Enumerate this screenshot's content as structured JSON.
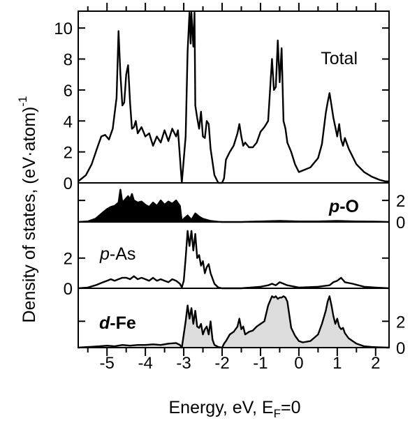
{
  "chart_data": {
    "type": "line",
    "xlabel": "Energy, eV, E",
    "xlabel_sub": "F",
    "xlabel_tail": "=0",
    "ylabel": "Density of states, (eV·atom)",
    "ylabel_sup": "-1",
    "xlim": [
      -5.75,
      2.35
    ],
    "x_ticks": [
      "-5",
      "-4",
      "-3",
      "-2",
      "-1",
      "0",
      "1",
      "2"
    ],
    "x_tick_values": [
      -5,
      -4,
      -3,
      -2,
      -1,
      0,
      1,
      2
    ],
    "panels": [
      {
        "id": "total",
        "label": "Total",
        "label_parts": [
          "Total"
        ],
        "ylim": [
          0,
          11
        ],
        "y_ticks": [
          "0",
          "2",
          "4",
          "6",
          "8",
          "10"
        ],
        "y_tick_values": [
          0,
          2,
          4,
          6,
          8,
          10
        ],
        "tick_side": "left",
        "fill": "none",
        "x": [
          -5.75,
          -5.55,
          -5.4,
          -5.25,
          -5.15,
          -5.05,
          -4.95,
          -4.85,
          -4.75,
          -4.7,
          -4.65,
          -4.6,
          -4.55,
          -4.5,
          -4.45,
          -4.4,
          -4.35,
          -4.3,
          -4.25,
          -4.2,
          -4.1,
          -4.0,
          -3.9,
          -3.8,
          -3.7,
          -3.6,
          -3.5,
          -3.4,
          -3.3,
          -3.2,
          -3.15,
          -3.05,
          -2.95,
          -2.9,
          -2.85,
          -2.82,
          -2.8,
          -2.75,
          -2.72,
          -2.7,
          -2.65,
          -2.6,
          -2.55,
          -2.5,
          -2.45,
          -2.4,
          -2.35,
          -2.3,
          -2.2,
          -2.1,
          -2.0,
          -1.95,
          -1.9,
          -1.8,
          -1.7,
          -1.6,
          -1.55,
          -1.5,
          -1.45,
          -1.4,
          -1.3,
          -1.2,
          -1.1,
          -1.0,
          -0.9,
          -0.8,
          -0.7,
          -0.65,
          -0.6,
          -0.55,
          -0.5,
          -0.45,
          -0.4,
          -0.35,
          -0.3,
          -0.2,
          -0.1,
          0.0,
          0.1,
          0.3,
          0.5,
          0.6,
          0.7,
          0.75,
          0.8,
          0.85,
          0.9,
          0.95,
          1.0,
          1.05,
          1.1,
          1.15,
          1.2,
          1.3,
          1.5,
          1.7,
          1.9,
          2.1,
          2.25,
          2.35
        ],
        "y": [
          0.1,
          0.5,
          1.2,
          2.3,
          3.0,
          3.1,
          2.8,
          3.5,
          5.5,
          9.8,
          7.0,
          5.0,
          5.2,
          7.0,
          7.6,
          5.2,
          3.5,
          3.6,
          4.0,
          3.2,
          3.6,
          3.0,
          3.2,
          2.4,
          3.0,
          2.6,
          3.4,
          2.7,
          3.5,
          3.0,
          3.4,
          0.0,
          3.0,
          8.5,
          11.0,
          9.0,
          11.0,
          8.8,
          11.0,
          5.0,
          4.2,
          3.5,
          4.6,
          3.0,
          2.9,
          4.0,
          3.8,
          2.2,
          0.5,
          0.0,
          0.0,
          0.3,
          1.5,
          2.0,
          2.4,
          3.2,
          3.8,
          3.0,
          2.4,
          2.6,
          2.3,
          2.3,
          2.6,
          3.3,
          3.6,
          4.0,
          8.0,
          6.0,
          6.2,
          9.2,
          6.5,
          8.7,
          4.0,
          3.5,
          2.6,
          2.0,
          1.2,
          0.7,
          0.8,
          1.0,
          1.6,
          2.5,
          4.5,
          5.2,
          5.8,
          5.0,
          4.2,
          3.6,
          3.0,
          3.8,
          2.8,
          2.4,
          2.9,
          2.2,
          1.2,
          0.7,
          0.4,
          0.2,
          0.1,
          0.1
        ]
      },
      {
        "id": "p-O",
        "label": "p-O",
        "label_parts": [
          "p",
          "-O"
        ],
        "label_style": "bold",
        "ylim": [
          0,
          3.5
        ],
        "y_ticks": [
          "0",
          "2"
        ],
        "y_tick_values": [
          0,
          2
        ],
        "tick_side": "right",
        "fill": "#000000",
        "x": [
          -5.75,
          -5.5,
          -5.3,
          -5.1,
          -5.0,
          -4.9,
          -4.8,
          -4.7,
          -4.65,
          -4.6,
          -4.55,
          -4.5,
          -4.45,
          -4.4,
          -4.35,
          -4.3,
          -4.2,
          -4.1,
          -4.0,
          -3.9,
          -3.8,
          -3.7,
          -3.6,
          -3.5,
          -3.4,
          -3.3,
          -3.2,
          -3.1,
          -3.05,
          -3.0,
          -2.9,
          -2.8,
          -2.7,
          -2.6,
          -2.5,
          -2.3,
          -2.1,
          -2.0,
          -1.5,
          -1.0,
          -0.5,
          0.0,
          0.5,
          1.0,
          1.5,
          2.0,
          2.35
        ],
        "y": [
          0.0,
          0.05,
          0.3,
          0.9,
          1.2,
          1.4,
          1.5,
          1.8,
          3.0,
          1.8,
          2.0,
          2.2,
          2.4,
          2.1,
          2.6,
          2.0,
          1.8,
          1.9,
          1.6,
          1.4,
          1.8,
          1.5,
          2.0,
          1.6,
          1.9,
          1.7,
          2.0,
          1.5,
          0.05,
          0.3,
          0.6,
          0.2,
          0.8,
          0.5,
          0.3,
          0.1,
          0.02,
          0.0,
          0.0,
          0.05,
          0.1,
          0.05,
          0.05,
          0.1,
          0.05,
          0.03,
          0.0
        ]
      },
      {
        "id": "p-As",
        "label": "p-As",
        "label_parts": [
          "p",
          "-As"
        ],
        "label_style": "normal",
        "ylim": [
          0,
          4.3
        ],
        "y_ticks": [
          "0",
          "2"
        ],
        "y_tick_values": [
          0,
          2
        ],
        "tick_side": "left",
        "fill": "none",
        "x": [
          -5.75,
          -5.5,
          -5.3,
          -5.1,
          -5.0,
          -4.9,
          -4.8,
          -4.7,
          -4.6,
          -4.5,
          -4.4,
          -4.3,
          -4.2,
          -4.1,
          -4.0,
          -3.9,
          -3.8,
          -3.7,
          -3.6,
          -3.5,
          -3.4,
          -3.3,
          -3.2,
          -3.1,
          -3.05,
          -3.0,
          -2.95,
          -2.9,
          -2.85,
          -2.8,
          -2.75,
          -2.7,
          -2.65,
          -2.6,
          -2.55,
          -2.5,
          -2.45,
          -2.4,
          -2.35,
          -2.3,
          -2.2,
          -2.1,
          -2.0,
          -1.5,
          -1.0,
          -0.8,
          -0.7,
          -0.6,
          -0.5,
          -0.4,
          -0.3,
          0.0,
          0.5,
          0.8,
          0.9,
          1.0,
          1.1,
          1.2,
          1.4,
          1.7,
          2.0,
          2.35
        ],
        "y": [
          0.0,
          0.05,
          0.2,
          0.4,
          0.5,
          0.6,
          0.5,
          0.6,
          0.7,
          0.7,
          0.6,
          0.8,
          0.6,
          0.7,
          0.6,
          0.5,
          0.7,
          0.5,
          0.6,
          0.5,
          0.4,
          0.6,
          0.5,
          0.3,
          0.05,
          0.5,
          2.0,
          3.8,
          2.8,
          3.8,
          2.5,
          3.6,
          2.0,
          2.2,
          1.5,
          1.8,
          1.0,
          1.4,
          1.6,
          1.0,
          0.3,
          0.05,
          0.0,
          0.0,
          0.1,
          0.2,
          0.3,
          0.2,
          0.4,
          0.3,
          0.2,
          0.05,
          0.1,
          0.2,
          0.4,
          0.5,
          0.7,
          0.4,
          0.3,
          0.1,
          0.05,
          0.0
        ]
      },
      {
        "id": "d-Fe",
        "label": "d-Fe",
        "label_parts": [
          "d",
          "-Fe"
        ],
        "label_style": "bold",
        "ylim": [
          0,
          4.4
        ],
        "y_ticks": [
          "0",
          "2"
        ],
        "y_tick_values": [
          0,
          2
        ],
        "tick_side": "right",
        "fill": "#dcdcdc",
        "x": [
          -5.75,
          -5.5,
          -5.2,
          -5.0,
          -4.8,
          -4.6,
          -4.4,
          -4.2,
          -4.0,
          -3.8,
          -3.6,
          -3.4,
          -3.2,
          -3.1,
          -3.05,
          -3.0,
          -2.95,
          -2.9,
          -2.85,
          -2.8,
          -2.75,
          -2.7,
          -2.65,
          -2.6,
          -2.55,
          -2.5,
          -2.45,
          -2.4,
          -2.35,
          -2.3,
          -2.25,
          -2.2,
          -2.1,
          -2.0,
          -1.95,
          -1.9,
          -1.8,
          -1.7,
          -1.6,
          -1.55,
          -1.5,
          -1.45,
          -1.4,
          -1.3,
          -1.2,
          -1.1,
          -1.0,
          -0.9,
          -0.8,
          -0.7,
          -0.65,
          -0.6,
          -0.55,
          -0.5,
          -0.45,
          -0.4,
          -0.35,
          -0.3,
          -0.2,
          -0.1,
          0.0,
          0.1,
          0.3,
          0.5,
          0.6,
          0.7,
          0.75,
          0.8,
          0.85,
          0.9,
          0.95,
          1.0,
          1.05,
          1.1,
          1.15,
          1.2,
          1.3,
          1.5,
          1.7,
          1.9,
          2.1,
          2.35
        ],
        "y": [
          0.0,
          0.05,
          0.1,
          0.15,
          0.1,
          0.2,
          0.15,
          0.2,
          0.2,
          0.25,
          0.2,
          0.3,
          0.35,
          0.2,
          0.0,
          1.0,
          2.0,
          3.2,
          2.2,
          3.0,
          1.8,
          2.8,
          1.6,
          1.5,
          1.8,
          1.0,
          1.4,
          1.6,
          1.0,
          2.0,
          0.6,
          0.2,
          0.05,
          0.0,
          0.3,
          0.5,
          1.0,
          1.2,
          1.6,
          2.2,
          1.4,
          1.6,
          1.0,
          1.2,
          1.3,
          1.6,
          1.8,
          2.0,
          3.2,
          3.9,
          3.8,
          3.9,
          3.7,
          3.8,
          3.8,
          3.9,
          3.8,
          3.5,
          1.5,
          0.9,
          0.5,
          0.4,
          0.5,
          1.0,
          1.8,
          2.8,
          3.5,
          3.9,
          3.2,
          2.4,
          1.8,
          2.2,
          1.6,
          1.4,
          1.5,
          1.1,
          0.7,
          0.3,
          0.1,
          0.05,
          0.02,
          0.0
        ]
      }
    ]
  }
}
